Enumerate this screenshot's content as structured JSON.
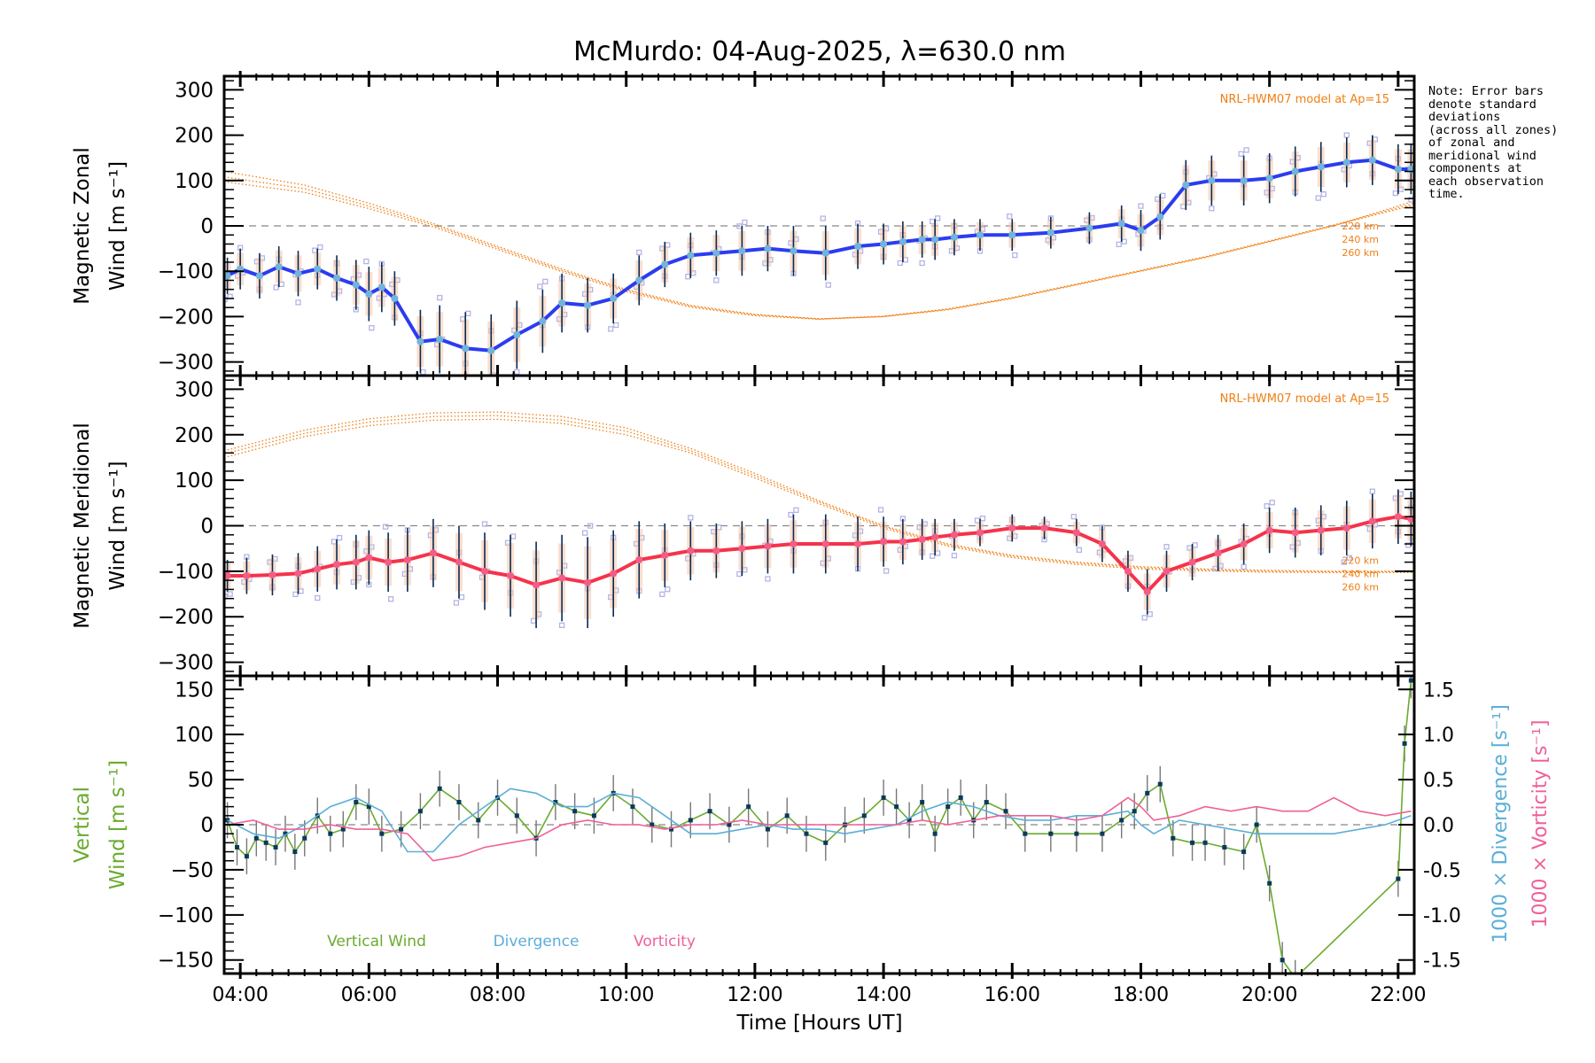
{
  "title": "McMurdo: 04-Aug-2025, λ=630.0 nm",
  "note": "Note: Error bars\ndenote standard\ndeviations\n(across all zones)\nof zonal and\nmeridional wind\ncomponents at\neach observation\ntime.",
  "colors": {
    "zonal": "#2b3cf0",
    "meridional": "#f5334a",
    "marker": "#6fb4dc",
    "model": "#f07f14",
    "vertical": "#6aab2e",
    "divergence": "#5aaed8",
    "vorticity": "#f0609a",
    "scatter": "#b4b4e6",
    "errorbar": "#0a2a50",
    "zero": "#888888"
  },
  "chart_data": [
    {
      "type": "line",
      "id": "zonal",
      "ylabel_line1": "Magnetic Zonal",
      "ylabel_line2": "Wind [m s⁻¹]",
      "ylim": [
        -330,
        330
      ],
      "yticks": [
        -300,
        -200,
        -100,
        0,
        100,
        200,
        300
      ],
      "xlim": [
        3.75,
        22.25
      ],
      "model_label": "NRL-HWM07 model at Ap=15",
      "model_altitudes": [
        "220 km",
        "240 km",
        "260 km"
      ],
      "model_series": [
        {
          "name": "220 km",
          "x": [
            3.75,
            5,
            6,
            7,
            8,
            9,
            10,
            11,
            12,
            13,
            14,
            15,
            16,
            17,
            18,
            19,
            20,
            21,
            22.25
          ],
          "y": [
            120,
            90,
            50,
            5,
            -45,
            -95,
            -140,
            -175,
            -195,
            -205,
            -200,
            -185,
            -160,
            -130,
            -100,
            -70,
            -35,
            0,
            55
          ]
        },
        {
          "name": "240 km",
          "x": [
            3.75,
            5,
            6,
            7,
            8,
            9,
            10,
            11,
            12,
            13,
            14,
            15,
            16,
            17,
            18,
            19,
            20,
            21,
            22.25
          ],
          "y": [
            108,
            82,
            44,
            2,
            -48,
            -98,
            -142,
            -177,
            -196,
            -205,
            -199,
            -183,
            -158,
            -128,
            -98,
            -68,
            -33,
            2,
            50
          ]
        },
        {
          "name": "260 km",
          "x": [
            3.75,
            5,
            6,
            7,
            8,
            9,
            10,
            11,
            12,
            13,
            14,
            15,
            16,
            17,
            18,
            19,
            20,
            21,
            22.25
          ],
          "y": [
            97,
            74,
            38,
            -2,
            -52,
            -101,
            -145,
            -179,
            -198,
            -206,
            -200,
            -184,
            -159,
            -129,
            -99,
            -69,
            -34,
            1,
            46
          ]
        }
      ],
      "series": {
        "name": "Zonal Wind",
        "x": [
          3.8,
          4.0,
          4.3,
          4.6,
          4.9,
          5.2,
          5.5,
          5.8,
          6.0,
          6.2,
          6.4,
          6.8,
          7.1,
          7.5,
          7.9,
          8.3,
          8.7,
          9.0,
          9.4,
          9.8,
          10.2,
          10.6,
          11.0,
          11.4,
          11.8,
          12.2,
          12.6,
          13.1,
          13.6,
          14.0,
          14.3,
          14.6,
          14.8,
          15.1,
          15.5,
          16.0,
          16.6,
          17.2,
          17.7,
          18.0,
          18.3,
          18.7,
          19.1,
          19.6,
          20.0,
          20.4,
          20.8,
          21.2,
          21.6,
          22.0,
          22.2
        ],
        "y": [
          -110,
          -95,
          -110,
          -90,
          -105,
          -95,
          -115,
          -130,
          -150,
          -135,
          -160,
          -255,
          -250,
          -270,
          -275,
          -240,
          -210,
          -170,
          -175,
          -160,
          -120,
          -85,
          -65,
          -60,
          -55,
          -50,
          -55,
          -60,
          -45,
          -40,
          -35,
          -30,
          -30,
          -25,
          -20,
          -20,
          -15,
          -5,
          5,
          -10,
          20,
          90,
          100,
          100,
          105,
          120,
          130,
          140,
          145,
          125,
          125
        ],
        "err": [
          40,
          45,
          50,
          45,
          50,
          45,
          50,
          55,
          60,
          55,
          60,
          70,
          75,
          80,
          80,
          75,
          70,
          65,
          60,
          55,
          55,
          50,
          50,
          50,
          55,
          50,
          55,
          60,
          50,
          45,
          45,
          40,
          45,
          40,
          35,
          35,
          35,
          35,
          40,
          45,
          50,
          55,
          55,
          55,
          55,
          55,
          55,
          55,
          55,
          55,
          55
        ]
      }
    },
    {
      "type": "line",
      "id": "meridional",
      "ylabel_line1": "Magnetic Meridional",
      "ylabel_line2": "Wind [m s⁻¹]",
      "ylim": [
        -330,
        330
      ],
      "yticks": [
        -300,
        -200,
        -100,
        0,
        100,
        200,
        300
      ],
      "xlim": [
        3.75,
        22.25
      ],
      "model_label": "NRL-HWM07 model at Ap=15",
      "model_altitudes": [
        "220 km",
        "240 km",
        "260 km"
      ],
      "model_series": [
        {
          "name": "220 km",
          "x": [
            3.75,
            5,
            6,
            7,
            8,
            9,
            10,
            11,
            12,
            13,
            14,
            15,
            16,
            17,
            18,
            19,
            20,
            21,
            22.25
          ],
          "y": [
            165,
            210,
            235,
            248,
            250,
            240,
            215,
            170,
            115,
            55,
            0,
            -40,
            -65,
            -80,
            -90,
            -95,
            -98,
            -100,
            -100
          ]
        },
        {
          "name": "240 km",
          "x": [
            3.75,
            5,
            6,
            7,
            8,
            9,
            10,
            11,
            12,
            13,
            14,
            15,
            16,
            17,
            18,
            19,
            20,
            21,
            22.25
          ],
          "y": [
            158,
            203,
            228,
            240,
            242,
            232,
            208,
            165,
            110,
            52,
            -2,
            -42,
            -67,
            -82,
            -92,
            -97,
            -100,
            -101,
            -101
          ]
        },
        {
          "name": "260 km",
          "x": [
            3.75,
            5,
            6,
            7,
            8,
            9,
            10,
            11,
            12,
            13,
            14,
            15,
            16,
            17,
            18,
            19,
            20,
            21,
            22.25
          ],
          "y": [
            150,
            196,
            220,
            232,
            234,
            225,
            200,
            160,
            105,
            48,
            -5,
            -45,
            -70,
            -85,
            -95,
            -99,
            -102,
            -103,
            -103
          ]
        }
      ],
      "series": {
        "name": "Meridional Wind",
        "x": [
          3.8,
          4.1,
          4.5,
          4.9,
          5.2,
          5.5,
          5.8,
          6.0,
          6.3,
          6.6,
          7.0,
          7.4,
          7.8,
          8.2,
          8.6,
          9.0,
          9.4,
          9.8,
          10.2,
          10.6,
          11.0,
          11.4,
          11.8,
          12.2,
          12.6,
          13.1,
          13.6,
          14.0,
          14.3,
          14.6,
          14.8,
          15.1,
          15.5,
          16.0,
          16.5,
          17.0,
          17.4,
          17.8,
          18.1,
          18.4,
          18.8,
          19.2,
          19.6,
          20.0,
          20.4,
          20.8,
          21.2,
          21.6,
          22.0,
          22.2
        ],
        "y": [
          -110,
          -110,
          -108,
          -105,
          -95,
          -85,
          -80,
          -70,
          -80,
          -75,
          -60,
          -80,
          -100,
          -110,
          -130,
          -115,
          -125,
          -105,
          -75,
          -65,
          -55,
          -55,
          -50,
          -45,
          -40,
          -40,
          -40,
          -35,
          -35,
          -30,
          -25,
          -20,
          -15,
          -5,
          -5,
          -15,
          -40,
          -100,
          -145,
          -100,
          -80,
          -60,
          -40,
          -10,
          -15,
          -10,
          -5,
          10,
          20,
          15
        ],
        "err": [
          35,
          40,
          45,
          45,
          50,
          55,
          60,
          60,
          65,
          70,
          75,
          80,
          85,
          90,
          95,
          95,
          100,
          95,
          85,
          70,
          65,
          60,
          60,
          60,
          65,
          65,
          60,
          55,
          50,
          45,
          40,
          35,
          30,
          30,
          25,
          30,
          40,
          45,
          50,
          45,
          40,
          40,
          45,
          50,
          55,
          55,
          60,
          60,
          60,
          60
        ]
      }
    },
    {
      "type": "line",
      "id": "vertical",
      "ylabel_line1": "Vertical",
      "ylabel_line2": "Wind [m s⁻¹]",
      "ylim": [
        -165,
        165
      ],
      "yticks": [
        -150,
        -100,
        -50,
        0,
        50,
        100,
        150
      ],
      "y2label_1": "1000 × Divergence [s⁻¹]",
      "y2label_2": "1000 × Vorticity [s⁻¹]",
      "y2lim": [
        -1.65,
        1.65
      ],
      "y2ticks": [
        -1.5,
        -1.0,
        -0.5,
        0.0,
        0.5,
        1.0,
        1.5
      ],
      "xlim": [
        3.75,
        22.25
      ],
      "xlabel": "Time [Hours UT]",
      "xticks": [
        4,
        6,
        8,
        10,
        12,
        14,
        16,
        18,
        20,
        22
      ],
      "xticklabels": [
        "04:00",
        "06:00",
        "08:00",
        "10:00",
        "12:00",
        "14:00",
        "16:00",
        "18:00",
        "20:00",
        "22:00"
      ],
      "legend": [
        "Vertical Wind",
        "Divergence",
        "Vorticity"
      ],
      "series": [
        {
          "name": "Vertical Wind",
          "x": [
            3.8,
            3.95,
            4.1,
            4.25,
            4.4,
            4.55,
            4.7,
            4.85,
            5.0,
            5.2,
            5.4,
            5.6,
            5.8,
            6.0,
            6.2,
            6.5,
            6.8,
            7.1,
            7.4,
            7.7,
            8.0,
            8.3,
            8.6,
            8.9,
            9.2,
            9.5,
            9.8,
            10.1,
            10.4,
            10.7,
            11.0,
            11.3,
            11.6,
            11.9,
            12.2,
            12.5,
            12.8,
            13.1,
            13.4,
            13.7,
            14.0,
            14.2,
            14.4,
            14.6,
            14.8,
            15.0,
            15.2,
            15.4,
            15.6,
            15.9,
            16.2,
            16.6,
            17.0,
            17.4,
            17.7,
            17.9,
            18.1,
            18.3,
            18.5,
            18.8,
            19.0,
            19.3,
            19.6,
            19.8,
            20.0,
            20.2,
            20.4,
            22.0,
            22.1,
            22.2
          ],
          "y": [
            5,
            -25,
            -35,
            -15,
            -20,
            -25,
            -10,
            -30,
            -15,
            10,
            -10,
            -5,
            25,
            20,
            -10,
            -5,
            15,
            40,
            25,
            5,
            30,
            10,
            -15,
            25,
            15,
            10,
            35,
            20,
            0,
            -5,
            5,
            15,
            0,
            20,
            -5,
            10,
            -10,
            -20,
            0,
            10,
            30,
            20,
            5,
            25,
            -10,
            20,
            30,
            5,
            25,
            15,
            -10,
            -10,
            -10,
            -10,
            5,
            15,
            35,
            45,
            -15,
            -20,
            -20,
            -25,
            -30,
            0,
            -65,
            -150,
            -170,
            -60,
            90,
            160
          ],
          "err": [
            20,
            20,
            20,
            20,
            20,
            20,
            20,
            20,
            20,
            20,
            20,
            20,
            20,
            20,
            20,
            20,
            20,
            20,
            20,
            20,
            20,
            20,
            20,
            20,
            20,
            20,
            20,
            20,
            20,
            20,
            20,
            20,
            20,
            20,
            20,
            20,
            20,
            20,
            20,
            20,
            20,
            20,
            20,
            20,
            20,
            20,
            20,
            20,
            20,
            20,
            20,
            20,
            20,
            20,
            20,
            20,
            20,
            20,
            20,
            20,
            20,
            20,
            20,
            20,
            20,
            20,
            20,
            20,
            20,
            20
          ]
        },
        {
          "name": "Divergence",
          "axis": "y2",
          "x": [
            3.8,
            4.2,
            4.6,
            5.0,
            5.4,
            5.8,
            6.2,
            6.6,
            7.0,
            7.4,
            7.8,
            8.2,
            8.6,
            9.0,
            9.4,
            9.8,
            10.2,
            10.6,
            11.0,
            11.4,
            11.8,
            12.2,
            12.6,
            13.0,
            13.4,
            13.8,
            14.2,
            14.6,
            15.0,
            15.4,
            15.8,
            16.2,
            16.6,
            17.0,
            17.4,
            17.8,
            18.0,
            18.2,
            18.6,
            19.0,
            19.4,
            19.8,
            20.2,
            20.6,
            21.0,
            21.4,
            21.8,
            22.2
          ],
          "y": [
            0.05,
            -0.1,
            -0.15,
            0.0,
            0.2,
            0.3,
            0.15,
            -0.3,
            -0.3,
            0.0,
            0.2,
            0.4,
            0.35,
            0.2,
            0.2,
            0.35,
            0.3,
            0.1,
            -0.1,
            -0.1,
            -0.05,
            0.0,
            -0.05,
            -0.05,
            -0.1,
            -0.05,
            0.0,
            0.15,
            0.25,
            0.2,
            0.1,
            0.05,
            0.05,
            0.1,
            0.1,
            0.15,
            0.0,
            -0.1,
            0.05,
            0.0,
            -0.05,
            -0.1,
            -0.1,
            -0.1,
            -0.1,
            -0.05,
            0.0,
            0.1
          ]
        },
        {
          "name": "Vorticity",
          "axis": "y2",
          "x": [
            3.8,
            4.2,
            4.6,
            5.0,
            5.4,
            5.8,
            6.2,
            6.6,
            7.0,
            7.4,
            7.8,
            8.2,
            8.6,
            9.0,
            9.4,
            9.8,
            10.2,
            10.6,
            11.0,
            11.4,
            11.8,
            12.2,
            12.6,
            13.0,
            13.4,
            13.8,
            14.2,
            14.6,
            15.0,
            15.4,
            15.8,
            16.2,
            16.6,
            17.0,
            17.4,
            17.8,
            18.0,
            18.2,
            18.6,
            19.0,
            19.4,
            19.8,
            20.2,
            20.6,
            21.0,
            21.4,
            21.8,
            22.2
          ],
          "y": [
            0.0,
            0.05,
            -0.05,
            -0.05,
            0.0,
            -0.05,
            -0.05,
            -0.1,
            -0.4,
            -0.35,
            -0.25,
            -0.2,
            -0.15,
            0.0,
            0.05,
            0.0,
            0.0,
            -0.05,
            0.0,
            0.0,
            0.05,
            0.0,
            0.0,
            0.0,
            0.0,
            0.0,
            0.0,
            0.05,
            0.0,
            0.05,
            0.1,
            0.1,
            0.1,
            0.05,
            0.1,
            0.3,
            0.2,
            0.05,
            0.1,
            0.2,
            0.15,
            0.2,
            0.15,
            0.15,
            0.3,
            0.15,
            0.1,
            0.15
          ]
        }
      ]
    }
  ]
}
